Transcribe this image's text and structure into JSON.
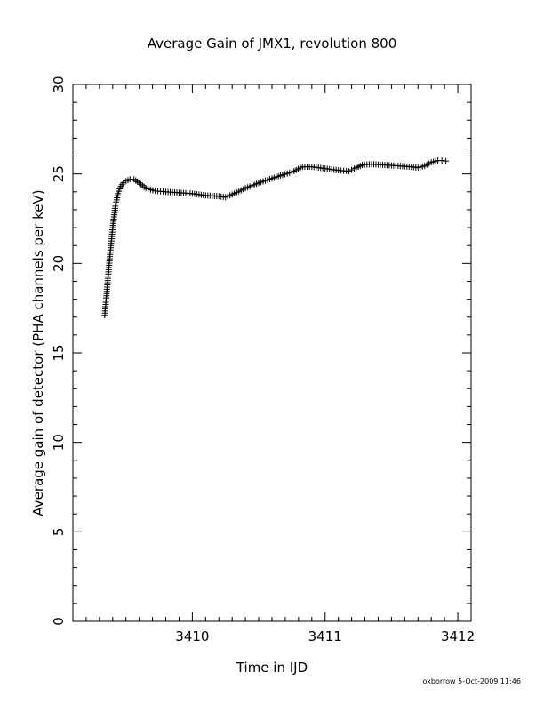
{
  "chart_data": {
    "type": "scatter",
    "title": "Average Gain of JMX1, revolution 800",
    "xlabel": "Time in IJD",
    "ylabel": "Average gain of detector (PHA channels per keV)",
    "xlim": [
      3409.1,
      3412.1
    ],
    "ylim": [
      0,
      30
    ],
    "x_ticks": [
      "3410",
      "3411",
      "3412"
    ],
    "y_ticks": [
      "0",
      "5",
      "10",
      "15",
      "20",
      "25",
      "30"
    ],
    "marker": "+",
    "color": "#000000",
    "grid": false,
    "series": [
      {
        "x": [
          3409.34,
          3409.36,
          3409.38,
          3409.4,
          3409.42,
          3409.44,
          3409.46,
          3409.48,
          3409.5,
          3409.53,
          3409.56,
          3409.6,
          3409.65,
          3409.72,
          3409.8,
          3409.9,
          3410.0,
          3410.1,
          3410.2,
          3410.25,
          3410.3,
          3410.4,
          3410.5,
          3410.6,
          3410.68,
          3410.75,
          3410.83,
          3410.9,
          3411.0,
          3411.1,
          3411.18,
          3411.22,
          3411.28,
          3411.35,
          3411.45,
          3411.55,
          3411.65,
          3411.7,
          3411.75,
          3411.8,
          3411.85,
          3411.88,
          3411.91
        ],
        "y": [
          17.1,
          18.8,
          20.5,
          22.0,
          23.2,
          23.9,
          24.3,
          24.5,
          24.6,
          24.7,
          24.7,
          24.5,
          24.2,
          24.05,
          24.0,
          23.95,
          23.9,
          23.8,
          23.75,
          23.7,
          23.85,
          24.2,
          24.5,
          24.75,
          24.95,
          25.1,
          25.4,
          25.4,
          25.3,
          25.2,
          25.15,
          25.3,
          25.5,
          25.55,
          25.5,
          25.45,
          25.4,
          25.35,
          25.45,
          25.65,
          25.75,
          25.75,
          25.72
        ]
      }
    ]
  },
  "footer": "oxborrow 5-Oct-2009 11:46"
}
